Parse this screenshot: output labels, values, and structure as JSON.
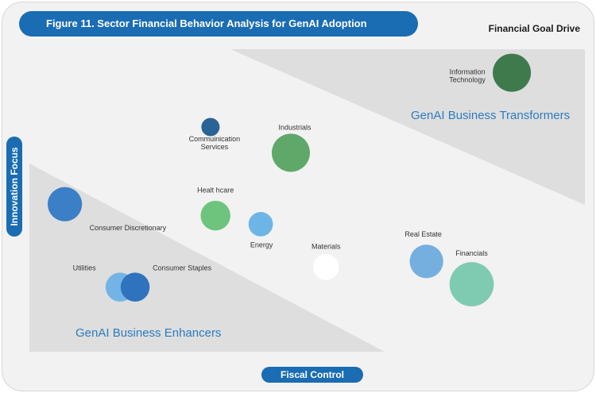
{
  "title": "Figure 11. Sector Financial Behavior Analysis for GenAI Adoption",
  "corner_label": "Financial Goal Drive",
  "y_axis_label": "Innovation Focus",
  "x_axis_label": "Fiscal Control",
  "chart_data": {
    "type": "scatter",
    "title": "Figure 11. Sector Financial Behavior Analysis for GenAI Adoption",
    "xlabel": "Fiscal Control",
    "ylabel": "Innovation Focus",
    "grid": false,
    "legend": "none",
    "zones": [
      {
        "label": "GenAI Business Transformers",
        "placement": "top-right"
      },
      {
        "label": "GenAI Business Enhancers",
        "placement": "bottom-left"
      }
    ],
    "points": [
      {
        "label": [
          "Information",
          "Technology"
        ],
        "x": 0.94,
        "y": 0.94,
        "size": 1.0,
        "color": "#3f7a4c"
      },
      {
        "label": [
          "Commuinication",
          "Services"
        ],
        "x": 0.34,
        "y": 0.75,
        "size": 0.48,
        "color": "#2a6496"
      },
      {
        "label": [
          "Industrials"
        ],
        "x": 0.5,
        "y": 0.66,
        "size": 1.0,
        "color": "#5fa869"
      },
      {
        "label": [
          "Healt hcare"
        ],
        "x": 0.35,
        "y": 0.44,
        "size": 0.78,
        "color": "#6ec47d"
      },
      {
        "label": [
          "Energy"
        ],
        "x": 0.44,
        "y": 0.41,
        "size": 0.64,
        "color": "#6db5e7"
      },
      {
        "label": [
          "Consumer Discretionary"
        ],
        "x": 0.05,
        "y": 0.48,
        "size": 0.9,
        "color": "#3b7fc7"
      },
      {
        "label": [
          "Materials"
        ],
        "x": 0.57,
        "y": 0.26,
        "size": 0.68,
        "color": "#ffffff"
      },
      {
        "label": [
          "Real Estate"
        ],
        "x": 0.77,
        "y": 0.28,
        "size": 0.88,
        "color": "#74afe0"
      },
      {
        "label": [
          "Financials"
        ],
        "x": 0.86,
        "y": 0.2,
        "size": 1.16,
        "color": "#7fcbb1"
      },
      {
        "label": [
          "Utilities"
        ],
        "x": 0.16,
        "y": 0.19,
        "size": 0.76,
        "color": "#74b3e5"
      },
      {
        "label": [
          "Consumer Staples"
        ],
        "x": 0.19,
        "y": 0.19,
        "size": 0.76,
        "color": "#2f73bf"
      }
    ]
  },
  "colors": {
    "accent": "#1a6cb3",
    "zone_fill": "#dedede",
    "zone_text": "#2a7bc1",
    "background": "#f2f2f2"
  }
}
